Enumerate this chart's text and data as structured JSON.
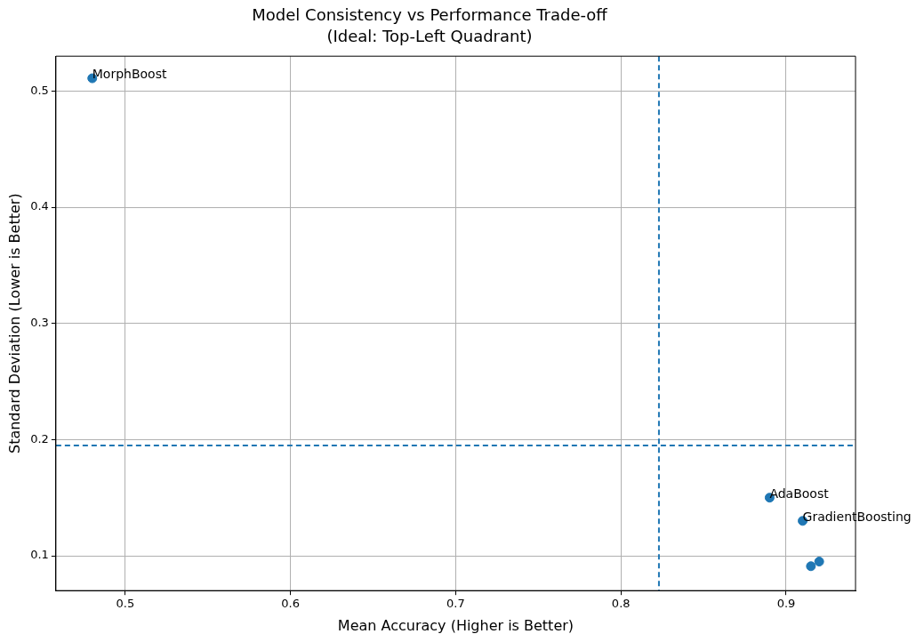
{
  "chart_data": {
    "type": "scatter",
    "title": "Model Consistency vs Performance Trade-off",
    "subtitle": "(Ideal: Top-Left Quadrant)",
    "xlabel": "Mean Accuracy (Higher is Better)",
    "ylabel": "Standard Deviation (Lower is Better)",
    "series": [
      {
        "color": "#1f77b4",
        "x": [
          0.48,
          0.89,
          0.91,
          0.92,
          0.915
        ],
        "values": [
          0.511,
          0.15,
          0.13,
          0.095,
          0.091
        ]
      }
    ],
    "xlim": [
      0.458,
      0.942
    ],
    "xticks": [
      0.5,
      0.6,
      0.7,
      0.8,
      0.9
    ],
    "ylim": [
      0.07,
      0.53
    ],
    "yticks": [
      0.1,
      0.2,
      0.3,
      0.4,
      0.5
    ],
    "ref_lines": [
      {
        "axis": "x",
        "value": 0.823,
        "color": "#1f77b4",
        "line_style": "dashed"
      },
      {
        "axis": "y",
        "value": 0.195,
        "color": "#1f77b4",
        "line_style": "dashed"
      }
    ],
    "annotations": [
      {
        "text": "MorphBoost",
        "x": 0.48,
        "y": 0.511
      },
      {
        "text": "AdaBoost",
        "x": 0.89,
        "y": 0.15
      },
      {
        "text": "GradientBoosting",
        "x": 0.91,
        "y": 0.13
      }
    ],
    "grid": true,
    "legend": false,
    "marker": "circle"
  }
}
